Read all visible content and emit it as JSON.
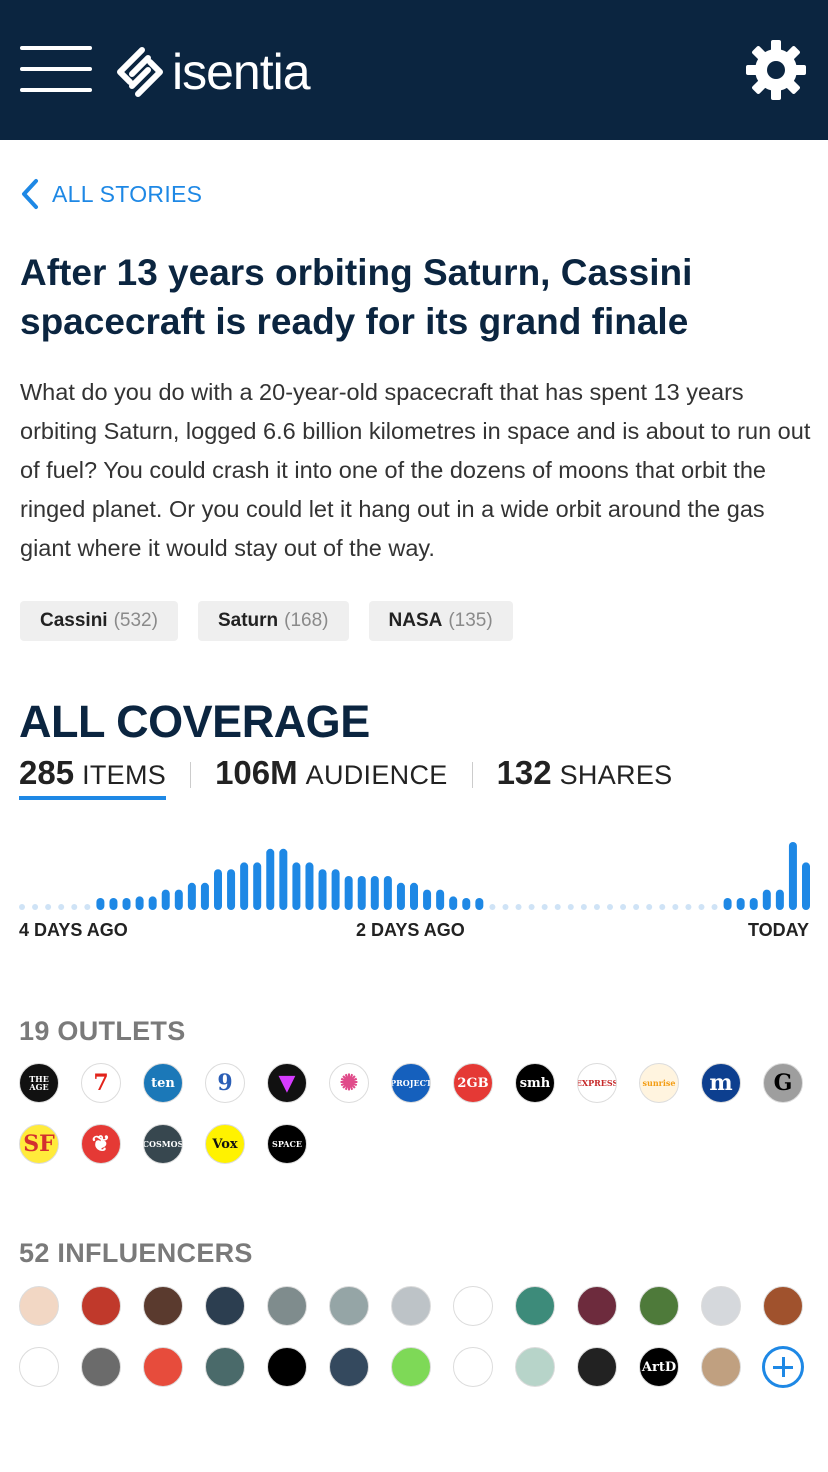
{
  "header": {
    "brand": "isentia",
    "colors": {
      "bar": "#0b2540",
      "accent": "#1e88e5"
    },
    "menu_icon": "hamburger-icon",
    "settings_icon": "gear-icon"
  },
  "nav": {
    "back_label": "ALL STORIES",
    "back_icon": "chevron-left-icon"
  },
  "story": {
    "title": "After 13 years orbiting Saturn, Cassini spacecraft is ready for its grand finale",
    "summary": "What do you do with a 20-year-old spacecraft that has spent 13 years orbiting Saturn, logged 6.6 billion kilometres in space and is about to run out of fuel? You could crash it into one of the dozens of moons that orbit the ringed planet. Or you could let it hang out in a wide orbit around the gas giant where it would stay out of the way.",
    "tags": [
      {
        "name": "Cassini",
        "count": "(532)"
      },
      {
        "name": "Saturn",
        "count": "(168)"
      },
      {
        "name": "NASA",
        "count": "(135)"
      }
    ]
  },
  "coverage": {
    "title": "ALL COVERAGE",
    "stats": [
      {
        "value": "285",
        "label": "ITEMS",
        "active": true
      },
      {
        "value": "106M",
        "label": "AUDIENCE",
        "active": false
      },
      {
        "value": "132",
        "label": "SHARES",
        "active": false
      }
    ]
  },
  "chart_data": {
    "type": "bar",
    "x_labels": [
      "4 DAYS AGO",
      "2 DAYS AGO",
      "TODAY"
    ],
    "values": [
      0,
      0,
      0,
      0,
      0,
      0,
      1,
      1,
      1,
      2,
      2,
      3,
      3,
      4,
      4,
      6,
      6,
      7,
      7,
      9,
      9,
      7,
      7,
      6,
      6,
      5,
      5,
      5,
      5,
      4,
      4,
      3,
      3,
      2,
      1,
      1,
      0,
      0,
      0,
      0,
      0,
      0,
      0,
      0,
      0,
      0,
      0,
      0,
      0,
      0,
      0,
      0,
      0,
      0,
      1,
      1,
      1,
      3,
      3,
      10,
      7
    ],
    "colors": {
      "bar": "#1e88e5",
      "empty_dot": "#cfe3f6"
    }
  },
  "outlets": {
    "title": "19 OUTLETS",
    "items": [
      {
        "name": "The Age",
        "text": "THE AGE",
        "bg": "#111111",
        "fg": "#ffffff"
      },
      {
        "name": "Seven",
        "text": "7",
        "bg": "#ffffff",
        "fg": "#e2231a"
      },
      {
        "name": "Ten",
        "text": "ten",
        "bg": "#1b78b8",
        "fg": "#ffffff"
      },
      {
        "name": "Nine",
        "text": "9",
        "bg": "#ffffff",
        "fg": "#2b5fb6"
      },
      {
        "name": "Vice",
        "text": "▼",
        "bg": "#111111",
        "fg": "#d63cff"
      },
      {
        "name": "ABC",
        "text": "✺",
        "bg": "#ffffff",
        "fg": "#e04b8a"
      },
      {
        "name": "The Project",
        "text": "PROJECT",
        "bg": "#1560bd",
        "fg": "#ffffff"
      },
      {
        "name": "2GB",
        "text": "2GB",
        "bg": "#e53935",
        "fg": "#ffffff"
      },
      {
        "name": "SMH",
        "text": "smh",
        "bg": "#000000",
        "fg": "#ffffff"
      },
      {
        "name": "The Indian Express",
        "text": "EXPRESS",
        "bg": "#ffffff",
        "fg": "#c62828"
      },
      {
        "name": "Sunrise",
        "text": "sunrise",
        "bg": "#fff4df",
        "fg": "#f39c12"
      },
      {
        "name": "US News",
        "text": "m",
        "bg": "#0d3f8f",
        "fg": "#ffffff"
      },
      {
        "name": "Gizmodo",
        "text": "G",
        "bg": "#9e9e9e",
        "fg": "#000000"
      },
      {
        "name": "SF Gate",
        "text": "SF",
        "bg": "#ffeb3b",
        "fg": "#d32f2f"
      },
      {
        "name": "Independent",
        "text": "❦",
        "bg": "#e53935",
        "fg": "#ffffff"
      },
      {
        "name": "Cosmos",
        "text": "COSMOS",
        "bg": "#37474f",
        "fg": "#ffffff"
      },
      {
        "name": "Vox",
        "text": "Vox",
        "bg": "#fff200",
        "fg": "#111111"
      },
      {
        "name": "Space",
        "text": "SPACE",
        "bg": "#000000",
        "fg": "#ffffff"
      }
    ]
  },
  "influencers": {
    "title": "52 INFLUENCERS",
    "items": [
      {
        "bg": "#f2d7c4",
        "fg": "#c98f5e",
        "text": ""
      },
      {
        "bg": "#c0392b",
        "fg": "#ffffff",
        "text": ""
      },
      {
        "bg": "#5a3a2e",
        "fg": "#ffffff",
        "text": ""
      },
      {
        "bg": "#2c3e50",
        "fg": "#ffffff",
        "text": ""
      },
      {
        "bg": "#7f8c8d",
        "fg": "#ffffff",
        "text": ""
      },
      {
        "bg": "#95a5a6",
        "fg": "#ffffff",
        "text": ""
      },
      {
        "bg": "#bdc3c7",
        "fg": "#333333",
        "text": ""
      },
      {
        "bg": "#ffffff",
        "fg": "#111111",
        "text": ""
      },
      {
        "bg": "#3d8b7a",
        "fg": "#ffffff",
        "text": ""
      },
      {
        "bg": "#6d2b3d",
        "fg": "#ffffff",
        "text": ""
      },
      {
        "bg": "#4e7a3a",
        "fg": "#ffffff",
        "text": ""
      },
      {
        "bg": "#d5d8dc",
        "fg": "#8e44ad",
        "text": ""
      },
      {
        "bg": "#a0522d",
        "fg": "#ffffff",
        "text": ""
      },
      {
        "bg": "#ffffff",
        "fg": "#111111",
        "text": ""
      },
      {
        "bg": "#6b6b6b",
        "fg": "#ffffff",
        "text": ""
      },
      {
        "bg": "#e74c3c",
        "fg": "#ffffff",
        "text": ""
      },
      {
        "bg": "#4a6a6a",
        "fg": "#ffffff",
        "text": ""
      },
      {
        "bg": "#000000",
        "fg": "#f39c12",
        "text": ""
      },
      {
        "bg": "#34495e",
        "fg": "#ffffff",
        "text": ""
      },
      {
        "bg": "#7ed957",
        "fg": "#111111",
        "text": ""
      },
      {
        "bg": "#ffffff",
        "fg": "#222222",
        "text": ""
      },
      {
        "bg": "#b7d4c9",
        "fg": "#6b4f2a",
        "text": ""
      },
      {
        "bg": "#222222",
        "fg": "#ffffff",
        "text": ""
      },
      {
        "bg": "#000000",
        "fg": "#ffffff",
        "text": "ArtD"
      },
      {
        "bg": "#c0a080",
        "fg": "#ffffff",
        "text": ""
      }
    ],
    "more_icon": "plus-icon"
  }
}
